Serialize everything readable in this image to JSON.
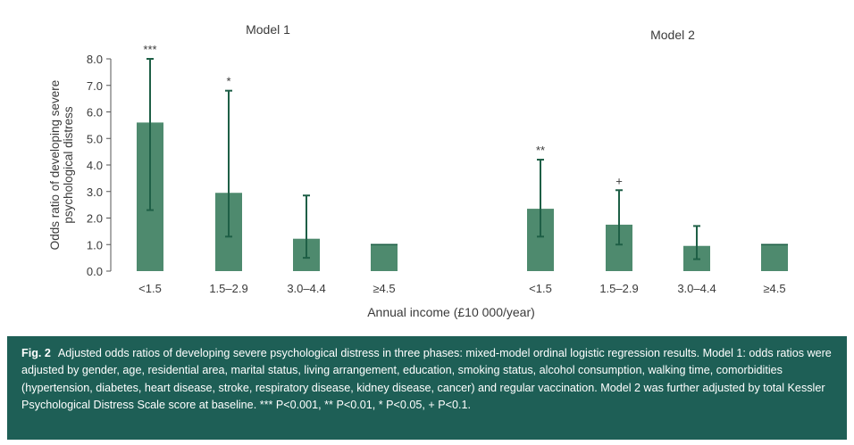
{
  "chart_data": {
    "type": "bar",
    "ylabel": "Odds ratio of developing severe psychological distress",
    "xlabel": "Annual income (£10 000/year)",
    "ylim": [
      0,
      8.0
    ],
    "yticks": [
      "0.0",
      "1.0",
      "2.0",
      "3.0",
      "4.0",
      "5.0",
      "6.0",
      "7.0",
      "8.0"
    ],
    "grid": false,
    "bar_color": "#4e8a6e",
    "errorbar_color": "#1e5f46",
    "panels": [
      {
        "title": "Model 1",
        "categories": [
          "<1.5",
          "1.5–2.9",
          "3.0–4.4",
          "≥4.5"
        ],
        "values": [
          5.6,
          2.95,
          1.22,
          1.0
        ],
        "ci_lower": [
          2.3,
          1.3,
          0.5,
          1.0
        ],
        "ci_upper": [
          8.0,
          6.8,
          2.85,
          1.0
        ],
        "significance": [
          "***",
          "*",
          "",
          ""
        ]
      },
      {
        "title": "Model 2",
        "categories": [
          "<1.5",
          "1.5–2.9",
          "3.0–4.4",
          "≥4.5"
        ],
        "values": [
          2.35,
          1.75,
          0.95,
          1.0
        ],
        "ci_lower": [
          1.3,
          1.0,
          0.45,
          1.0
        ],
        "ci_upper": [
          4.2,
          3.05,
          1.7,
          1.0
        ],
        "significance": [
          "**",
          "+",
          "",
          ""
        ]
      }
    ]
  },
  "caption": {
    "label": "Fig. 2",
    "text": "Adjusted odds ratios of developing severe psychological distress in three phases: mixed-model ordinal logistic regression results. Model 1: odds ratios were adjusted by gender, age, residential area, marital status, living arrangement, education, smoking status, alcohol consumption, walking time, comorbidities (hypertension, diabetes, heart disease, stroke, respiratory disease, kidney disease, cancer) and regular vaccination. Model 2 was further adjusted by total Kessler Psychological Distress Scale score at baseline. *** P<0.001, ** P<0.01, * P<0.05, + P<0.1."
  }
}
